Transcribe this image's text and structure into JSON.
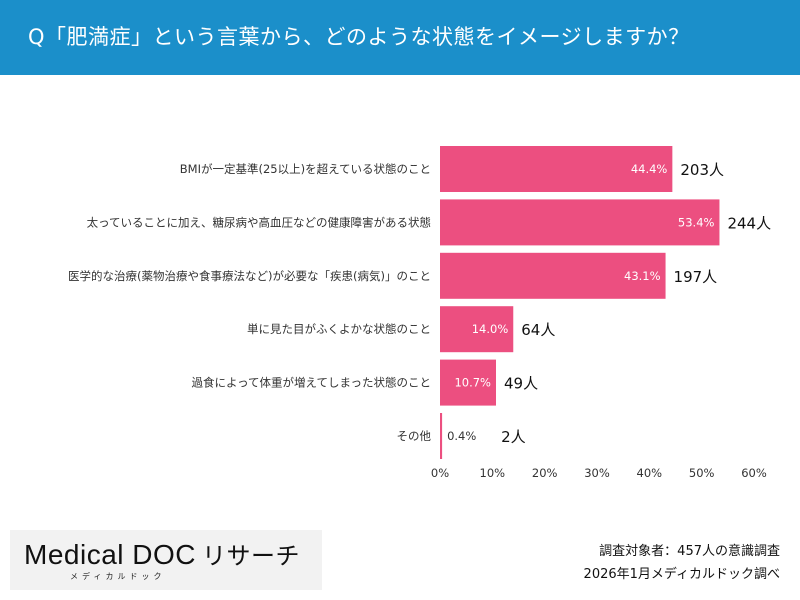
{
  "header": {
    "title": "Q「肥満症」という言葉から、どのような状態をイメージしますか？"
  },
  "chart_data": {
    "type": "bar",
    "orientation": "horizontal",
    "categories": [
      "BMIが一定基準(25以上)を超えている状態のこと",
      "太っていることに加え、糖尿病や高血圧などの健康障害がある状態",
      "医学的な治療(薬物治療や食事療法など)が必要な「疾患(病気)」のこと",
      "単に見た目がふくよかな状態のこと",
      "過食によって体重が増えてしまった状態のこと",
      "その他"
    ],
    "values": [
      44.4,
      53.4,
      43.1,
      14.0,
      10.7,
      0.4
    ],
    "value_labels": [
      "44.4%",
      "53.4%",
      "43.1%",
      "14.0%",
      "10.7%",
      "0.4%"
    ],
    "counts": [
      "203人",
      "244人",
      "197人",
      "64人",
      "49人",
      "2人"
    ],
    "xlim": [
      0,
      60
    ],
    "x_ticks": [
      "0%",
      "10%",
      "20%",
      "30%",
      "40%",
      "50%",
      "60%"
    ],
    "grid": false,
    "bar_color": "#ec4f80"
  },
  "footer": {
    "logo_main": "Medical DOC",
    "logo_suffix": "リサーチ",
    "logo_sub": "メディカルドック",
    "note_line1": "調査対象者：457人の意識調査",
    "note_line2": "2026年1月メディカルドック調べ"
  }
}
